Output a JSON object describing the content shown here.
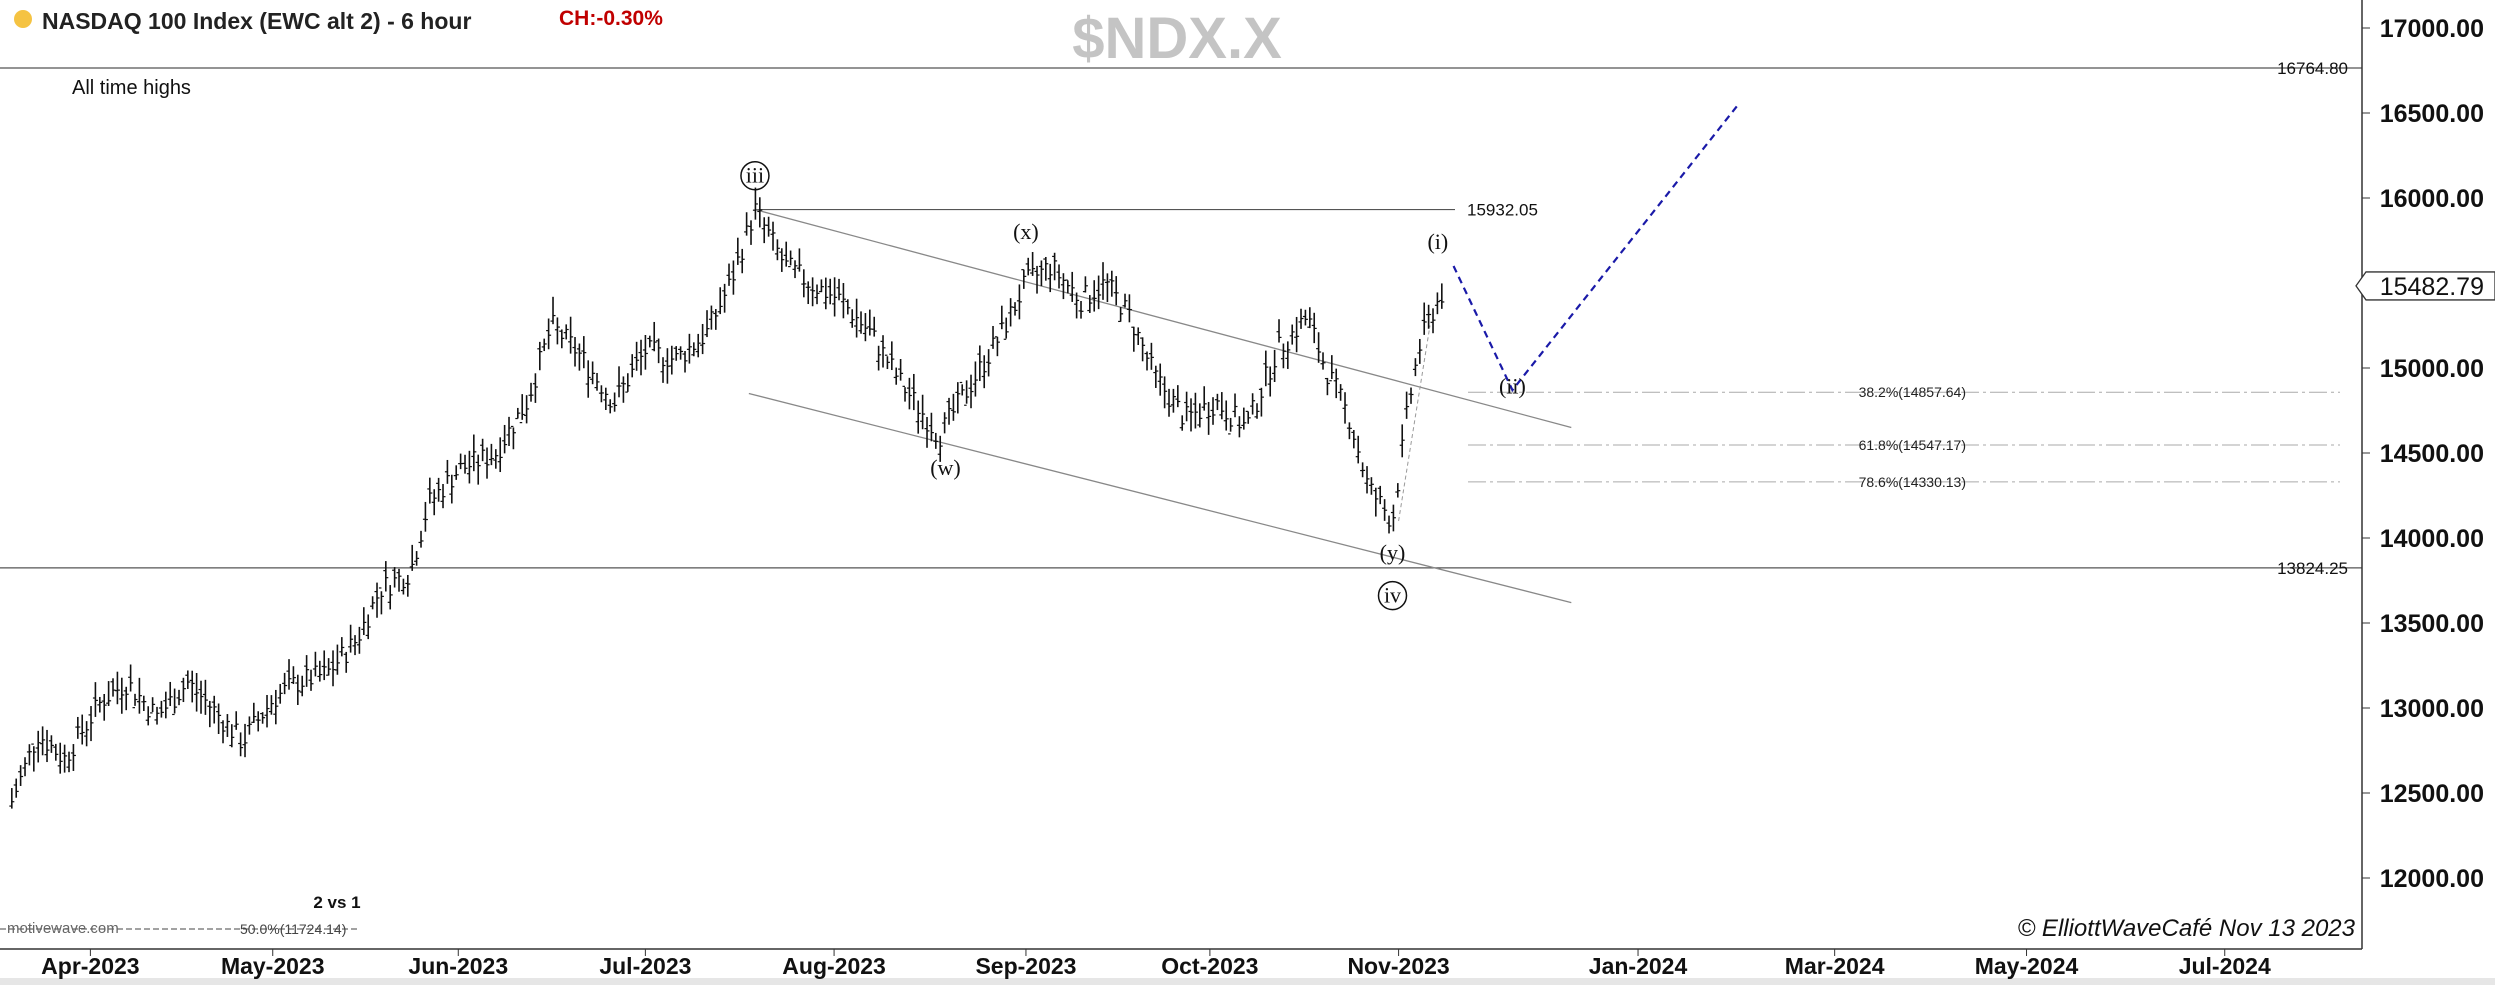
{
  "header": {
    "title": "NASDAQ 100 Index (EWC alt 2) - 6 hour",
    "change": "CH:-0.30%",
    "symbol_watermark": "$NDX.X",
    "status_color": "#f5c342",
    "change_color": "#c00000"
  },
  "footer": {
    "copyright": "© ElliottWaveCafé Nov 13 2023",
    "source_watermark": "motivewave.com"
  },
  "chart_data": {
    "type": "bar",
    "title": "NASDAQ 100 Index (EWC alt 2) - 6 hour",
    "ylim": [
      11800,
      17200
    ],
    "y_axis": {
      "ticks": [
        12000,
        12500,
        13000,
        13500,
        14000,
        14500,
        15000,
        15500,
        16000,
        16500,
        17000
      ],
      "tick_labels": [
        "12000.00",
        "12500.00",
        "13000.00",
        "13500.00",
        "14000.00",
        "14500.00",
        "15000.00",
        "15500.00",
        "16000.00",
        "16500.00",
        "17000.00"
      ],
      "current_price": 15482.79,
      "current_price_label": "15482.79"
    },
    "x_axis": {
      "tick_dates": [
        "2023-04-01",
        "2023-05-01",
        "2023-06-01",
        "2023-07-01",
        "2023-08-01",
        "2023-09-01",
        "2023-10-01",
        "2023-11-01",
        "2024-01-01",
        "2024-03-01",
        "2024-05-01",
        "2024-07-01"
      ],
      "tick_labels": [
        "Apr-2023",
        "May-2023",
        "Jun-2023",
        "Jul-2023",
        "Aug-2023",
        "Sep-2023",
        "Oct-2023",
        "Nov-2023",
        "Jan-2024",
        "Mar-2024",
        "May-2024",
        "Jul-2024"
      ]
    },
    "colors": {
      "bars": "#111111",
      "projection": "#1a1aa8",
      "levels": "#555555",
      "channel": "#888888",
      "fib": "#aaaaaa"
    },
    "price_path": [
      [
        "2023-03-20",
        12450
      ],
      [
        "2023-03-24",
        12850
      ],
      [
        "2023-03-28",
        12700
      ],
      [
        "2023-04-03",
        13050
      ],
      [
        "2023-04-07",
        13150
      ],
      [
        "2023-04-12",
        12950
      ],
      [
        "2023-04-17",
        13150
      ],
      [
        "2023-04-21",
        13000
      ],
      [
        "2023-04-26",
        12800
      ],
      [
        "2023-05-01",
        13050
      ],
      [
        "2023-05-05",
        13150
      ],
      [
        "2023-05-10",
        13200
      ],
      [
        "2023-05-15",
        13400
      ],
      [
        "2023-05-19",
        13700
      ],
      [
        "2023-05-24",
        13800
      ],
      [
        "2023-05-27",
        14200
      ],
      [
        "2023-06-01",
        14400
      ],
      [
        "2023-06-07",
        14500
      ],
      [
        "2023-06-12",
        14800
      ],
      [
        "2023-06-16",
        15250
      ],
      [
        "2023-06-20",
        15100
      ],
      [
        "2023-06-26",
        14800
      ],
      [
        "2023-07-01",
        15100
      ],
      [
        "2023-07-06",
        15050
      ],
      [
        "2023-07-11",
        15200
      ],
      [
        "2023-07-15",
        15500
      ],
      [
        "2023-07-19",
        15932
      ],
      [
        "2023-07-24",
        15600
      ],
      [
        "2023-07-28",
        15500
      ],
      [
        "2023-08-02",
        15400
      ],
      [
        "2023-08-07",
        15200
      ],
      [
        "2023-08-12",
        14900
      ],
      [
        "2023-08-18",
        14600
      ],
      [
        "2023-08-23",
        14900
      ],
      [
        "2023-08-28",
        15200
      ],
      [
        "2023-09-01",
        15500
      ],
      [
        "2023-09-05",
        15600
      ],
      [
        "2023-09-10",
        15400
      ],
      [
        "2023-09-14",
        15500
      ],
      [
        "2023-09-18",
        15300
      ],
      [
        "2023-09-22",
        14950
      ],
      [
        "2023-09-27",
        14700
      ],
      [
        "2023-10-02",
        14800
      ],
      [
        "2023-10-07",
        14650
      ],
      [
        "2023-10-12",
        15100
      ],
      [
        "2023-10-17",
        15300
      ],
      [
        "2023-10-20",
        15000
      ],
      [
        "2023-10-24",
        14700
      ],
      [
        "2023-10-27",
        14300
      ],
      [
        "2023-10-31",
        14100
      ],
      [
        "2023-11-03",
        14700
      ],
      [
        "2023-11-06",
        15100
      ],
      [
        "2023-11-09",
        15300
      ],
      [
        "2023-11-13",
        15482.79
      ]
    ],
    "horizontal_levels": [
      {
        "value": 16764.8,
        "label": "16764.80",
        "note": "All time highs"
      },
      {
        "value": 15932.05,
        "label": "15932.05"
      },
      {
        "value": 13824.25,
        "label": "13824.25"
      }
    ],
    "fib_levels": [
      {
        "value": 14857.64,
        "label": "38.2%(14857.64)"
      },
      {
        "value": 14547.17,
        "label": "61.8%(14547.17)"
      },
      {
        "value": 14330.13,
        "label": "78.6%(14330.13)"
      },
      {
        "value": 11724.14,
        "label": "50.0%(11724.14)",
        "note": "2 vs 1"
      }
    ],
    "channel_lines": [
      {
        "from": [
          "2023-07-19",
          15932
        ],
        "to": [
          "2023-12-15",
          14650
        ]
      },
      {
        "from": [
          "2023-07-18",
          14850
        ],
        "to": [
          "2023-12-15",
          13620
        ]
      }
    ],
    "projection": [
      [
        "2023-11-15",
        15600
      ],
      [
        "2023-11-30",
        14870
      ],
      [
        "2024-02-01",
        16560
      ]
    ],
    "wave_labels": [
      {
        "text": "iii",
        "date": "2023-07-19",
        "value": 16090,
        "circled": true
      },
      {
        "text": "(x)",
        "date": "2023-09-01",
        "value": 15760,
        "circled": false
      },
      {
        "text": "(w)",
        "date": "2023-08-19",
        "value": 14370,
        "circled": false
      },
      {
        "text": "(i)",
        "date": "2023-11-11",
        "value": 15700,
        "circled": false
      },
      {
        "text": "(ii)",
        "date": "2023-11-30",
        "value": 14850,
        "circled": false
      },
      {
        "text": "(y)",
        "date": "2023-10-31",
        "value": 13870,
        "circled": false
      },
      {
        "text": "iv",
        "date": "2023-10-31",
        "value": 13620,
        "circled": true
      }
    ]
  }
}
